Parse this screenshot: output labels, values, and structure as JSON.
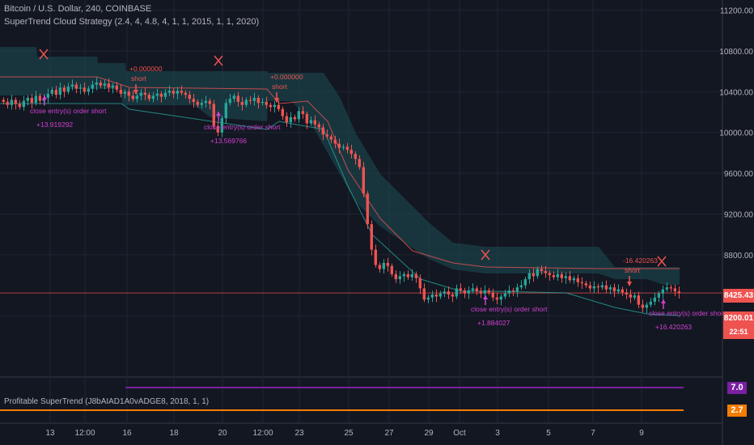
{
  "header": {
    "symbol": "Bitcoin / U.S. Dollar, 240, COINBASE",
    "study": "SuperTrend Cloud Strategy (2.4, 4, 4.8, 4, 1, 1, 2015, 1, 1, 2020)"
  },
  "colors": {
    "background": "#131722",
    "up": "#26a69a",
    "down": "#ef5350",
    "cloud": "#1c4a52",
    "signal": "#d040d0",
    "purple_line": "#7b1fa2",
    "orange_line": "#f57c00"
  },
  "price_axis": {
    "ticks": [
      "11200.00",
      "10800.00",
      "10400.00",
      "10000.00",
      "9600.00",
      "9200.00",
      "8800.00",
      "8200.00"
    ],
    "current_price": "8425.43",
    "tag_2": "8200.01",
    "countdown": "22:51",
    "partial_low": "8"
  },
  "time_axis": {
    "ticks": [
      "13",
      "12:00",
      "16",
      "18",
      "20",
      "12:00",
      "23",
      "25",
      "27",
      "29",
      "Oct",
      "3",
      "5",
      "7",
      "9"
    ]
  },
  "signals": [
    {
      "label": "close entry(s) order short",
      "pnl": "+13.919292"
    },
    {
      "label": "close entry(s) order short",
      "pnl": "+13.569766"
    },
    {
      "label": "close entry(s) order short",
      "pnl": "+1.884027"
    },
    {
      "label": "close entry(s) order short",
      "pnl": "+16.420263"
    }
  ],
  "short_entries": [
    {
      "price": "+0.000000",
      "label": "short"
    },
    {
      "price": "+0.000000",
      "label": "short"
    },
    {
      "price": "-16.420263",
      "label": "short"
    }
  ],
  "indicator": {
    "title": "Profitable SuperTrend (J8bAIAD1A0vADGE8, 2018, 1, 1)",
    "value_top": "7.0",
    "value_bottom": "2.7"
  },
  "chart_data": {
    "type": "candlestick",
    "y_range": [
      7600,
      11300
    ],
    "candles_close": [
      10300,
      10270,
      10320,
      10280,
      10250,
      10310,
      10340,
      10290,
      10360,
      10310,
      10340,
      10380,
      10420,
      10370,
      10440,
      10400,
      10450,
      10470,
      10430,
      10440,
      10400,
      10430,
      10470,
      10490,
      10460,
      10480,
      10440,
      10460,
      10420,
      10380,
      10400,
      10360,
      10330,
      10360,
      10390,
      10370,
      10330,
      10360,
      10380,
      10350,
      10390,
      10410,
      10380,
      10410,
      10390,
      10370,
      10330,
      10300,
      10270,
      10290,
      10310,
      10280,
      10060,
      10000,
      10140,
      10290,
      10330,
      10360,
      10300,
      10270,
      10320,
      10310,
      10340,
      10290,
      10300,
      10270,
      10250,
      10270,
      10230,
      10160,
      10100,
      10150,
      10130,
      10210,
      10180,
      10090,
      10120,
      10080,
      10050,
      9980,
      9960,
      9930,
      9890,
      9850,
      9860,
      9830,
      9790,
      9740,
      9660,
      9400,
      9100,
      8850,
      8700,
      8660,
      8720,
      8690,
      8610,
      8560,
      8590,
      8610,
      8580,
      8610,
      8570,
      8470,
      8360,
      8380,
      8410,
      8390,
      8420,
      8440,
      8410,
      8390,
      8470,
      8450,
      8420,
      8450,
      8470,
      8440,
      8420,
      8450,
      8430,
      8380,
      8360,
      8390,
      8420,
      8450,
      8440,
      8480,
      8500,
      8560,
      8620,
      8590,
      8660,
      8640,
      8620,
      8600,
      8580,
      8610,
      8570,
      8590,
      8550,
      8570,
      8530,
      8520,
      8500,
      8470,
      8490,
      8480,
      8500,
      8460,
      8480,
      8440,
      8460,
      8430,
      8410,
      8380,
      8400,
      8310,
      8280,
      8310,
      8340,
      8380,
      8420,
      8460,
      8480,
      8470,
      8440,
      8425
    ]
  }
}
